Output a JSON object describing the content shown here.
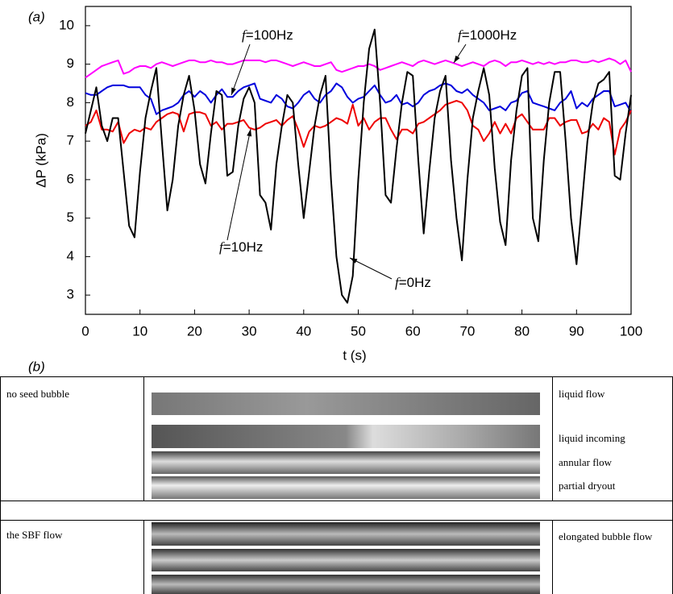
{
  "panel_a": {
    "label": "(a)"
  },
  "chart_data": {
    "type": "line",
    "xlabel": "t (s)",
    "ylabel": "ΔP (kPa)",
    "x": [
      0,
      1,
      2,
      3,
      4,
      5,
      6,
      7,
      8,
      9,
      10,
      11,
      12,
      13,
      14,
      15,
      16,
      17,
      18,
      19,
      20,
      21,
      22,
      23,
      24,
      25,
      26,
      27,
      28,
      29,
      30,
      31,
      32,
      33,
      34,
      35,
      36,
      37,
      38,
      39,
      40,
      41,
      42,
      43,
      44,
      45,
      46,
      47,
      48,
      49,
      50,
      51,
      52,
      53,
      54,
      55,
      56,
      57,
      58,
      59,
      60,
      61,
      62,
      63,
      64,
      65,
      66,
      67,
      68,
      69,
      70,
      71,
      72,
      73,
      74,
      75,
      76,
      77,
      78,
      79,
      80,
      81,
      82,
      83,
      84,
      85,
      86,
      87,
      88,
      89,
      90,
      91,
      92,
      93,
      94,
      95,
      96,
      97,
      98,
      99,
      100
    ],
    "series": [
      {
        "color": "#ff00ff",
        "values": [
          8.65,
          8.75,
          8.85,
          8.95,
          9.0,
          9.05,
          9.1,
          8.75,
          8.8,
          8.9,
          8.95,
          8.95,
          8.9,
          9.0,
          9.05,
          9.0,
          8.95,
          9.0,
          9.05,
          9.1,
          9.1,
          9.05,
          9.05,
          9.1,
          9.05,
          9.05,
          9.0,
          9.0,
          9.05,
          9.1,
          9.1,
          9.1,
          9.1,
          9.05,
          9.1,
          9.1,
          9.05,
          9.0,
          8.95,
          9.0,
          9.05,
          9.0,
          8.95,
          8.95,
          9.0,
          9.05,
          8.85,
          8.8,
          8.85,
          8.9,
          8.95,
          8.95,
          9.0,
          8.95,
          8.85,
          8.9,
          8.95,
          9.0,
          9.05,
          9.0,
          8.95,
          9.05,
          9.1,
          9.05,
          9.0,
          9.05,
          9.1,
          9.05,
          9.0,
          8.95,
          9.0,
          9.05,
          9.0,
          8.95,
          9.05,
          9.1,
          9.05,
          8.95,
          9.05,
          9.05,
          9.1,
          9.05,
          9.0,
          9.05,
          9.0,
          9.05,
          9.0,
          9.05,
          9.05,
          9.1,
          9.1,
          9.05,
          9.05,
          9.1,
          9.05,
          9.1,
          9.15,
          9.1,
          9.0,
          9.1,
          8.8
        ]
      },
      {
        "color": "#0000dd",
        "values": [
          8.25,
          8.2,
          8.2,
          8.3,
          8.4,
          8.45,
          8.45,
          8.45,
          8.4,
          8.4,
          8.4,
          8.2,
          8.1,
          7.7,
          7.8,
          7.85,
          7.9,
          8.0,
          8.2,
          8.3,
          8.15,
          8.3,
          8.2,
          8.0,
          8.2,
          8.35,
          8.15,
          8.15,
          8.3,
          8.4,
          8.45,
          8.5,
          8.1,
          8.05,
          8.0,
          8.2,
          8.1,
          7.9,
          7.85,
          8.0,
          8.2,
          8.3,
          8.1,
          8.0,
          8.2,
          8.3,
          8.5,
          8.4,
          8.15,
          8.0,
          8.1,
          8.15,
          8.3,
          8.45,
          8.2,
          8.0,
          8.05,
          8.2,
          7.95,
          8.0,
          7.9,
          8.0,
          8.2,
          8.3,
          8.35,
          8.45,
          8.5,
          8.45,
          8.3,
          8.25,
          8.35,
          8.2,
          8.1,
          8.0,
          7.8,
          7.85,
          7.9,
          7.8,
          8.0,
          8.05,
          8.25,
          8.3,
          8.0,
          7.95,
          7.9,
          7.85,
          7.8,
          8.0,
          8.1,
          8.3,
          7.85,
          8.0,
          7.9,
          8.1,
          8.2,
          8.3,
          8.3,
          7.9,
          7.95,
          8.0,
          7.75
        ]
      },
      {
        "color": "#ee0000",
        "values": [
          7.4,
          7.5,
          7.8,
          7.3,
          7.3,
          7.25,
          7.5,
          6.95,
          7.2,
          7.3,
          7.25,
          7.35,
          7.3,
          7.5,
          7.6,
          7.7,
          7.75,
          7.7,
          7.25,
          7.7,
          7.75,
          7.75,
          7.7,
          7.4,
          7.5,
          7.3,
          7.45,
          7.45,
          7.5,
          7.55,
          7.35,
          7.3,
          7.35,
          7.45,
          7.5,
          7.55,
          7.4,
          7.55,
          7.65,
          7.3,
          6.85,
          7.25,
          7.4,
          7.35,
          7.4,
          7.5,
          7.6,
          7.55,
          7.45,
          7.95,
          7.4,
          7.6,
          7.3,
          7.5,
          7.6,
          7.6,
          7.3,
          7.05,
          7.3,
          7.3,
          7.2,
          7.45,
          7.5,
          7.6,
          7.7,
          7.8,
          7.95,
          8.0,
          8.05,
          8.0,
          7.8,
          7.4,
          7.3,
          7.0,
          7.2,
          7.5,
          7.2,
          7.45,
          7.2,
          7.6,
          7.7,
          7.5,
          7.3,
          7.3,
          7.3,
          7.6,
          7.6,
          7.4,
          7.5,
          7.55,
          7.55,
          7.2,
          7.25,
          7.45,
          7.3,
          7.6,
          7.5,
          6.65,
          7.3,
          7.5,
          7.8
        ]
      },
      {
        "color": "#000000",
        "values": [
          7.2,
          7.8,
          8.4,
          7.4,
          7.0,
          7.6,
          7.6,
          6.2,
          4.8,
          4.5,
          6.2,
          7.6,
          8.3,
          8.9,
          7.0,
          5.2,
          6.0,
          7.4,
          8.2,
          8.7,
          7.8,
          6.4,
          5.9,
          7.2,
          8.3,
          8.2,
          6.1,
          6.2,
          7.4,
          8.1,
          8.4,
          8.0,
          5.6,
          5.4,
          4.7,
          6.4,
          7.4,
          8.2,
          8.0,
          6.4,
          5.0,
          6.2,
          7.4,
          8.2,
          8.7,
          6.0,
          4.0,
          3.0,
          2.8,
          3.5,
          6.0,
          8.0,
          9.4,
          9.9,
          8.0,
          5.6,
          5.4,
          6.8,
          8.0,
          8.8,
          8.7,
          6.5,
          4.6,
          6.2,
          7.6,
          8.3,
          8.7,
          6.5,
          5.0,
          3.9,
          6.0,
          7.6,
          8.3,
          8.9,
          8.2,
          6.3,
          4.9,
          4.3,
          6.5,
          7.8,
          8.7,
          8.9,
          5.0,
          4.4,
          6.5,
          8.0,
          8.8,
          8.8,
          7.0,
          5.0,
          3.8,
          5.4,
          7.0,
          8.0,
          8.5,
          8.6,
          8.8,
          6.1,
          6.0,
          7.2,
          8.2
        ]
      }
    ],
    "xlim": [
      0,
      100
    ],
    "ylim": [
      2.5,
      10.5
    ],
    "xticks": [
      0,
      10,
      20,
      30,
      40,
      50,
      60,
      70,
      80,
      90,
      100
    ],
    "yticks": [
      3,
      4,
      5,
      6,
      7,
      8,
      9,
      10
    ],
    "annotations": [
      {
        "var": "f",
        "text": "=100Hz"
      },
      {
        "var": "f",
        "text": "=1000Hz"
      },
      {
        "var": "f",
        "text": "=10Hz"
      },
      {
        "var": "f",
        "text": "=0Hz"
      }
    ]
  },
  "panel_b": {
    "label": "(b)",
    "table": {
      "rows": [
        {
          "left": "no seed bubble",
          "right": [
            "liquid flow",
            "liquid incoming",
            "annular flow",
            "partial dryout"
          ]
        },
        {
          "left": "the SBF flow",
          "right": [
            "elongated bubble flow"
          ]
        }
      ]
    }
  }
}
